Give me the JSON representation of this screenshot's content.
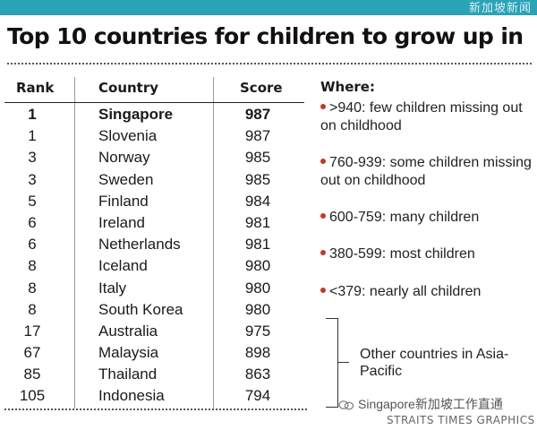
{
  "header": {
    "tag": "新加坡新闻",
    "title": "Top 10 countries for children to grow up in"
  },
  "chart_data": {
    "type": "table",
    "title": "Top 10 countries for children to grow up in",
    "columns": [
      "Rank",
      "Country",
      "Score"
    ],
    "rows": [
      {
        "rank": "1",
        "country": "Singapore",
        "score": "987",
        "highlight": true
      },
      {
        "rank": "1",
        "country": "Slovenia",
        "score": "987"
      },
      {
        "rank": "3",
        "country": "Norway",
        "score": "985"
      },
      {
        "rank": "3",
        "country": "Sweden",
        "score": "985"
      },
      {
        "rank": "5",
        "country": "Finland",
        "score": "984"
      },
      {
        "rank": "6",
        "country": "Ireland",
        "score": "981"
      },
      {
        "rank": "6",
        "country": "Netherlands",
        "score": "981"
      },
      {
        "rank": "8",
        "country": "Iceland",
        "score": "980"
      },
      {
        "rank": "8",
        "country": "Italy",
        "score": "980"
      },
      {
        "rank": "8",
        "country": "South Korea",
        "score": "980"
      },
      {
        "rank": "17",
        "country": "Australia",
        "score": "975"
      },
      {
        "rank": "67",
        "country": "Malaysia",
        "score": "898"
      },
      {
        "rank": "85",
        "country": "Thailand",
        "score": "863"
      },
      {
        "rank": "105",
        "country": "Indonesia",
        "score": "794"
      }
    ],
    "legend": {
      "title": "Where:",
      "items": [
        ">940: few children missing out on childhood",
        "760-939: some children missing out on childhood",
        "600-759: many children",
        "380-599: most children",
        "<379: nearly all children"
      ],
      "dot_color": "#c0392b"
    },
    "other_note": "Other countries in Asia-Pacific"
  },
  "footer": {
    "watermark": "Singapore新加坡工作直通",
    "credit": "STRAITS TIMES GRAPHICS"
  },
  "colors": {
    "topbar": "#2aa3b7",
    "bullet": "#c0392b"
  }
}
